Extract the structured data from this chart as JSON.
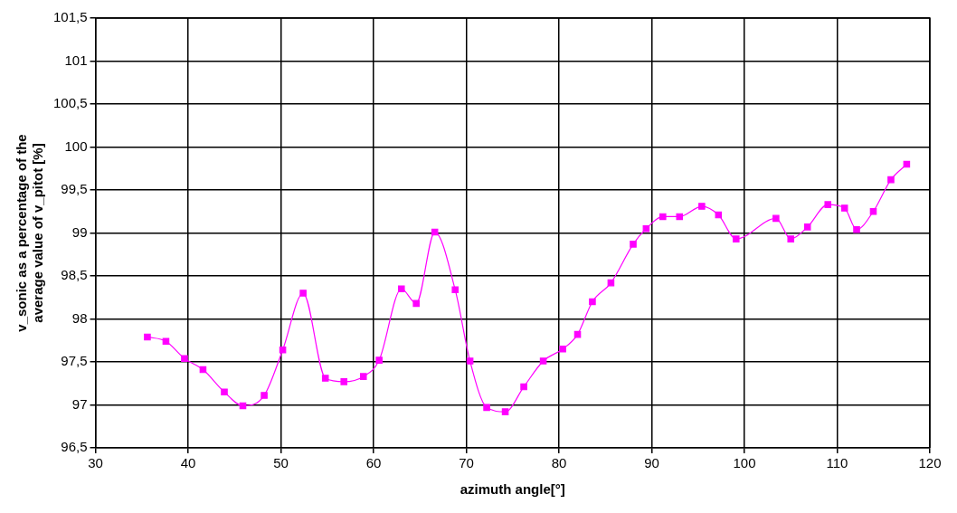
{
  "chart_data": {
    "type": "line",
    "xlabel": "azimuth angle[°]",
    "ylabel": "v_sonic as a percentage of the average value of v_pitot [%]",
    "x": [
      35.6,
      37.6,
      39.6,
      41.6,
      43.9,
      45.9,
      48.2,
      50.2,
      52.4,
      54.8,
      56.8,
      58.9,
      60.6,
      63.0,
      64.6,
      66.6,
      68.8,
      70.4,
      72.2,
      74.2,
      76.2,
      78.3,
      80.4,
      82.0,
      83.6,
      85.6,
      88.0,
      89.4,
      91.2,
      93.0,
      95.4,
      97.2,
      99.1,
      103.4,
      105.0,
      106.8,
      109.0,
      110.8,
      112.1,
      113.9,
      115.8,
      117.5
    ],
    "series": [
      {
        "color": "#ff00ff",
        "values": [
          97.79,
          97.74,
          97.54,
          97.41,
          97.15,
          96.99,
          97.11,
          97.64,
          98.3,
          97.31,
          97.27,
          97.33,
          97.52,
          98.35,
          98.18,
          99.01,
          98.34,
          97.51,
          96.97,
          96.92,
          97.21,
          97.51,
          97.65,
          97.82,
          98.2,
          98.42,
          98.87,
          99.05,
          99.19,
          99.19,
          99.31,
          99.21,
          98.93,
          99.17,
          98.93,
          99.07,
          99.33,
          99.29,
          99.04,
          99.25,
          99.62,
          99.8
        ]
      }
    ],
    "xlim": [
      30,
      120
    ],
    "xticks": [
      30,
      40,
      50,
      60,
      70,
      80,
      90,
      100,
      110,
      120
    ],
    "ylim": [
      96.5,
      101.5
    ],
    "yticks": [
      {
        "value": 96.5,
        "label": "96,5"
      },
      97,
      {
        "value": 97.5,
        "label": "97,5"
      },
      98,
      {
        "value": 98.5,
        "label": "98,5"
      },
      99,
      {
        "value": 99.5,
        "label": "99,5"
      },
      100,
      {
        "value": 100.5,
        "label": "100,5"
      },
      101,
      {
        "value": 101.5,
        "label": "101,5"
      }
    ],
    "grid": true,
    "legend": false,
    "marker": "square",
    "line_style": "solid"
  }
}
